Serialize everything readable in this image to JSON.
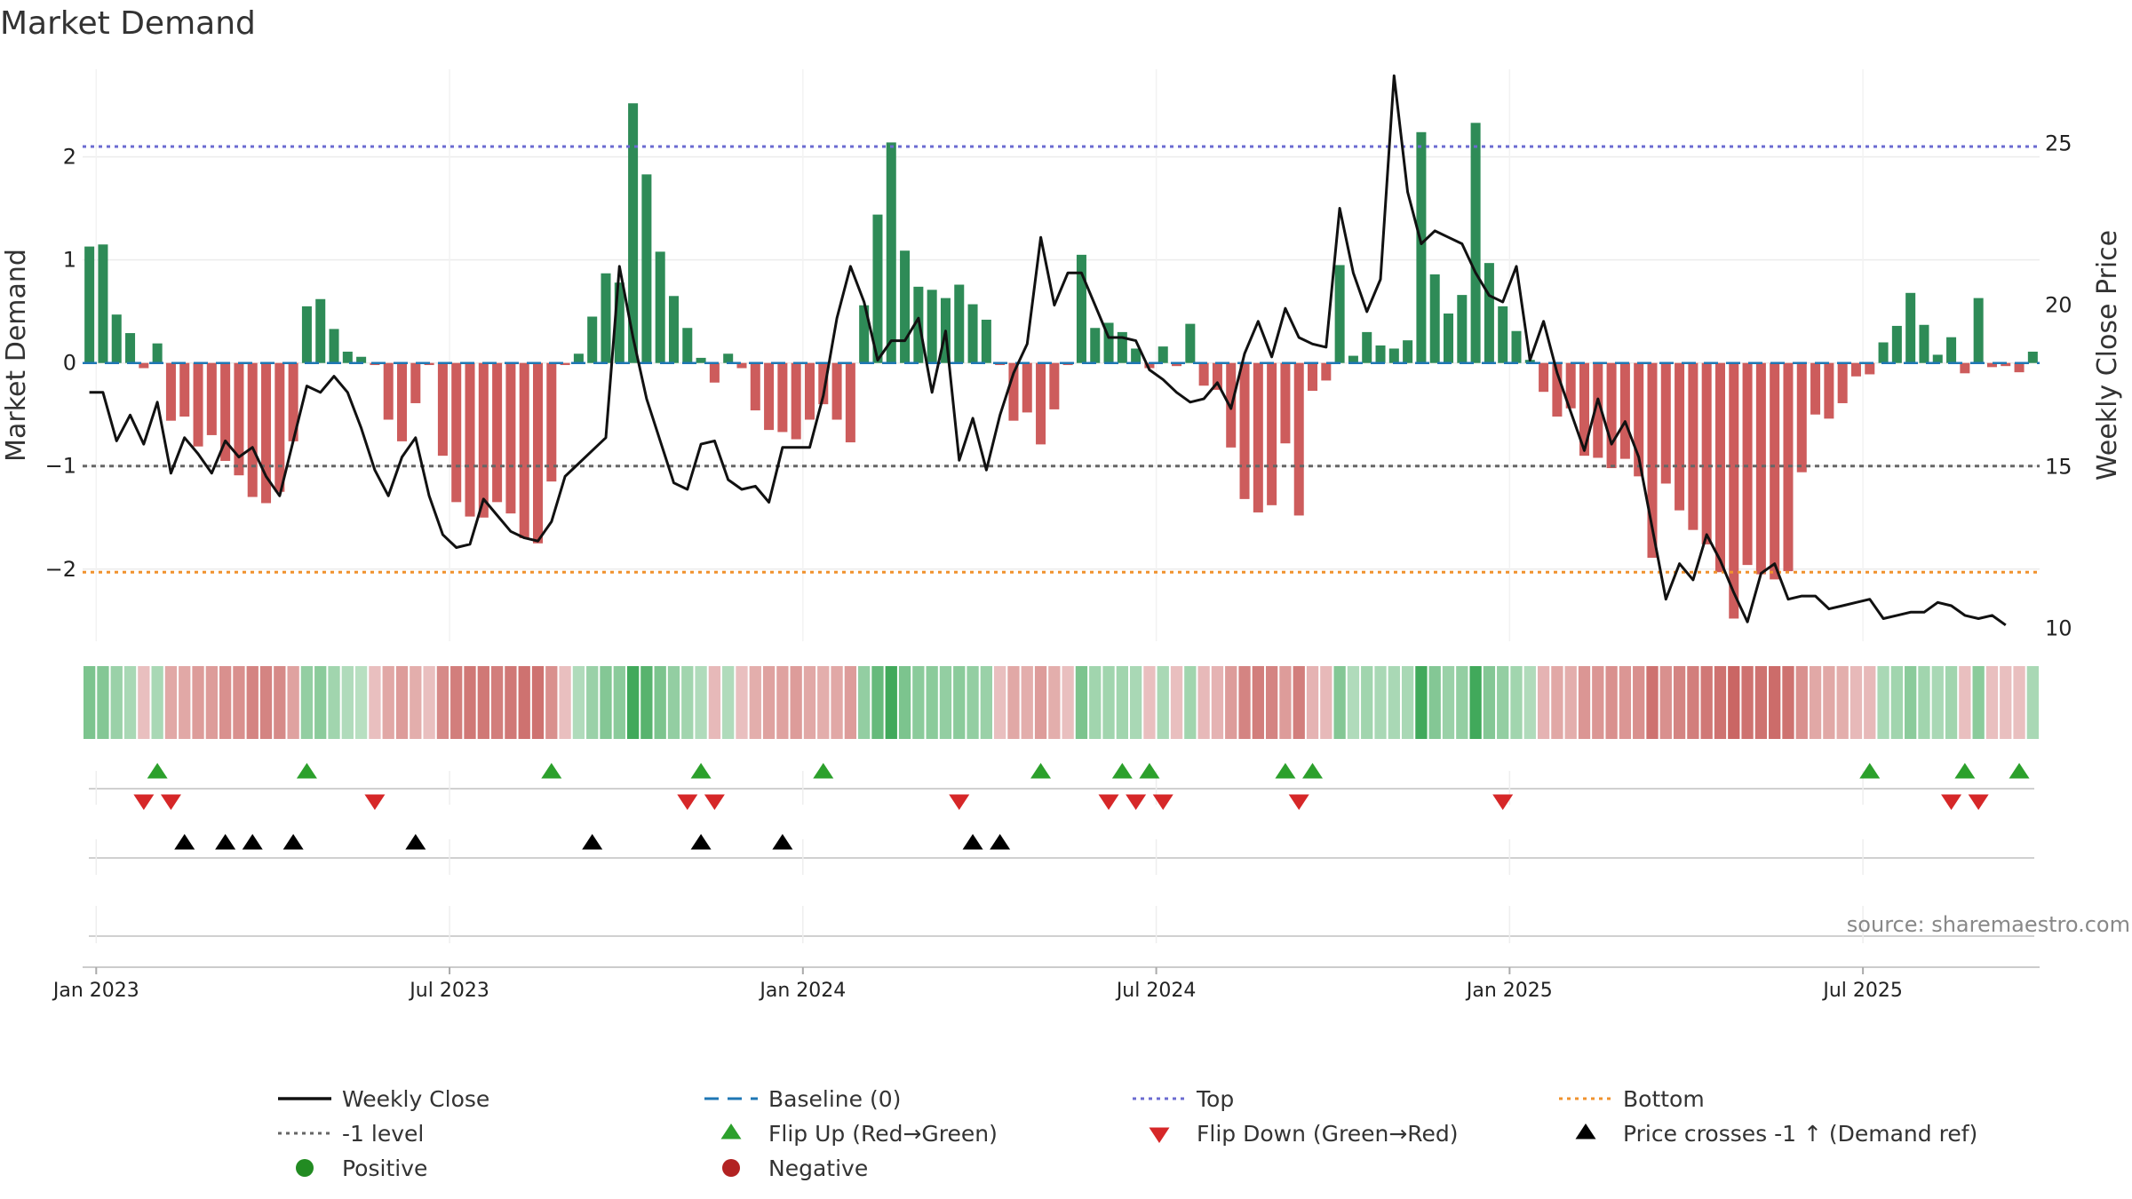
{
  "chart_data": {
    "type": "bar",
    "title": "Market Demand",
    "ylabel": "Market Demand",
    "y2label": "Weekly Close Price",
    "ylim": [
      -2.7,
      2.85
    ],
    "y2lim": [
      9.6,
      27.3
    ],
    "yticks": [
      "2",
      "1",
      "0",
      "−1",
      "−2"
    ],
    "yticks_values": [
      2,
      1,
      0,
      -1,
      -2
    ],
    "y2ticks": [
      "25",
      "20",
      "15",
      "10"
    ],
    "y2ticks_values": [
      25,
      20,
      15,
      10
    ],
    "xticks": [
      "Jan 2023",
      "Jul 2023",
      "Jan 2024",
      "Jul 2024",
      "Jan 2025",
      "Jul 2025"
    ],
    "xticks_week_index": [
      1,
      27,
      53,
      79,
      105,
      131
    ],
    "levels": {
      "top": 2.1,
      "bottom": -2.03,
      "minus_one": -1,
      "baseline": 0
    },
    "demand": [
      1.13,
      1.15,
      0.47,
      0.29,
      -0.05,
      0.19,
      -0.56,
      -0.52,
      -0.81,
      -0.7,
      -0.95,
      -1.09,
      -1.3,
      -1.36,
      -1.25,
      -0.76,
      0.55,
      0.62,
      0.33,
      0.11,
      0.06,
      -0.02,
      -0.55,
      -0.76,
      -0.39,
      -0.02,
      -0.9,
      -1.35,
      -1.49,
      -1.5,
      -1.35,
      -1.46,
      -1.7,
      -1.75,
      -1.15,
      -0.02,
      0.09,
      0.45,
      0.87,
      0.78,
      2.52,
      1.83,
      1.08,
      0.65,
      0.34,
      0.05,
      -0.19,
      0.09,
      -0.05,
      -0.46,
      -0.65,
      -0.67,
      -0.74,
      -0.55,
      -0.4,
      -0.55,
      -0.77,
      0.56,
      1.44,
      2.14,
      1.09,
      0.74,
      0.71,
      0.63,
      0.76,
      0.57,
      0.42,
      -0.02,
      -0.56,
      -0.48,
      -0.79,
      -0.45,
      -0.02,
      1.05,
      0.34,
      0.39,
      0.3,
      0.14,
      -0.05,
      0.16,
      -0.03,
      0.38,
      -0.22,
      -0.26,
      -0.82,
      -1.32,
      -1.45,
      -1.38,
      -0.78,
      -1.48,
      -0.27,
      -0.17,
      0.95,
      0.07,
      0.3,
      0.17,
      0.14,
      0.22,
      2.24,
      0.86,
      0.48,
      0.66,
      2.33,
      0.97,
      0.55,
      0.31,
      0.03,
      -0.28,
      -0.52,
      -0.44,
      -0.9,
      -0.92,
      -1.02,
      -0.93,
      -1.1,
      -1.89,
      -1.17,
      -1.43,
      -1.62,
      -1.76,
      -2.03,
      -2.48,
      -1.96,
      -2.05,
      -2.1,
      -2.02,
      -1.06,
      -0.5,
      -0.54,
      -0.39,
      -0.13,
      -0.11,
      0.2,
      0.36,
      0.68,
      0.37,
      0.08,
      0.25,
      -0.1,
      0.63,
      -0.04,
      -0.03,
      -0.09,
      0.11
    ],
    "price": [
      17.3,
      17.3,
      15.8,
      16.6,
      15.7,
      17.0,
      14.8,
      15.9,
      15.4,
      14.8,
      15.8,
      15.3,
      15.6,
      14.7,
      14.1,
      15.8,
      17.5,
      17.3,
      17.8,
      17.3,
      16.2,
      14.9,
      14.1,
      15.3,
      15.9,
      14.1,
      12.9,
      12.5,
      12.6,
      14.0,
      13.5,
      13.0,
      12.8,
      12.7,
      13.3,
      14.7,
      15.1,
      15.5,
      15.9,
      21.2,
      19.0,
      17.1,
      15.8,
      14.5,
      14.3,
      15.7,
      15.8,
      14.6,
      14.3,
      14.4,
      13.9,
      15.6,
      15.6,
      15.6,
      17.2,
      19.6,
      21.2,
      20.1,
      18.3,
      18.9,
      18.9,
      19.6,
      17.3,
      19.2,
      15.2,
      16.5,
      14.9,
      16.6,
      17.9,
      18.8,
      22.1,
      20.0,
      21.0,
      21.0,
      20.0,
      19.0,
      19.0,
      18.9,
      18.0,
      17.7,
      17.3,
      17.0,
      17.1,
      17.6,
      16.8,
      18.5,
      19.5,
      18.4,
      19.9,
      19.0,
      18.8,
      18.7,
      23.0,
      21.0,
      19.8,
      20.8,
      27.1,
      23.5,
      21.9,
      22.3,
      22.1,
      21.9,
      21.0,
      20.3,
      20.1,
      21.2,
      18.3,
      19.5,
      17.9,
      16.7,
      15.5,
      17.1,
      15.7,
      16.4,
      15.3,
      13.1,
      10.9,
      12.0,
      11.5,
      12.9,
      12.1,
      11.1,
      10.2,
      11.7,
      12.0,
      10.9,
      11.0,
      11.0,
      10.6,
      10.7,
      10.8,
      10.9,
      10.3,
      10.4,
      10.5,
      10.5,
      10.8,
      10.7,
      10.4,
      10.3,
      10.4,
      10.1
    ],
    "heat_intensity": [
      0.55,
      0.5,
      0.35,
      0.25,
      -0.2,
      0.25,
      -0.4,
      -0.4,
      -0.5,
      -0.5,
      -0.6,
      -0.6,
      -0.7,
      -0.7,
      -0.65,
      -0.45,
      0.4,
      0.45,
      0.3,
      0.2,
      0.15,
      -0.2,
      -0.4,
      -0.5,
      -0.35,
      -0.2,
      -0.65,
      -0.75,
      -0.8,
      -0.8,
      -0.75,
      -0.8,
      -0.85,
      -0.85,
      -0.6,
      -0.2,
      0.2,
      0.35,
      0.5,
      0.45,
      0.95,
      0.8,
      0.55,
      0.4,
      0.3,
      0.2,
      -0.25,
      0.2,
      -0.2,
      -0.35,
      -0.45,
      -0.45,
      -0.5,
      -0.4,
      -0.35,
      -0.4,
      -0.5,
      0.4,
      0.7,
      0.95,
      0.55,
      0.45,
      0.45,
      0.4,
      0.45,
      0.4,
      0.35,
      -0.2,
      -0.4,
      -0.35,
      -0.5,
      -0.35,
      -0.2,
      0.55,
      0.3,
      0.3,
      0.3,
      0.25,
      -0.2,
      0.25,
      -0.2,
      0.3,
      -0.25,
      -0.3,
      -0.5,
      -0.7,
      -0.75,
      -0.7,
      -0.5,
      -0.75,
      -0.3,
      -0.25,
      0.5,
      0.2,
      0.3,
      0.25,
      0.25,
      0.25,
      0.95,
      0.5,
      0.35,
      0.4,
      0.95,
      0.5,
      0.4,
      0.3,
      0.2,
      -0.3,
      -0.4,
      -0.35,
      -0.55,
      -0.55,
      -0.6,
      -0.55,
      -0.6,
      -0.85,
      -0.6,
      -0.7,
      -0.75,
      -0.8,
      -0.85,
      -0.95,
      -0.85,
      -0.85,
      -0.9,
      -0.85,
      -0.6,
      -0.4,
      -0.4,
      -0.35,
      -0.25,
      -0.25,
      0.25,
      0.3,
      0.45,
      0.3,
      0.25,
      0.3,
      -0.2,
      0.45,
      -0.2,
      -0.2,
      -0.2,
      0.25
    ],
    "flip_up_weeks": [
      5,
      16,
      34,
      45,
      54,
      70,
      76,
      78,
      88,
      90,
      131,
      138,
      142
    ],
    "flip_down_weeks": [
      4,
      6,
      21,
      44,
      46,
      64,
      75,
      77,
      79,
      89,
      104,
      137,
      139
    ],
    "price_cross_weeks": [
      7,
      10,
      12,
      15,
      24,
      37,
      45,
      51,
      65,
      67
    ],
    "legend": [
      {
        "label": "Weekly Close",
        "marker": "solid-line",
        "color": "#111111"
      },
      {
        "label": "Baseline (0)",
        "marker": "dashed-line",
        "color": "#1f77b4"
      },
      {
        "label": "Top",
        "marker": "dotted-line",
        "color": "#6b6bd1"
      },
      {
        "label": "Bottom",
        "marker": "dotted-line",
        "color": "#f0922e"
      },
      {
        "label": "-1 level",
        "marker": "dotted-line",
        "color": "#666666"
      },
      {
        "label": "Flip Up (Red→Green)",
        "marker": "triangle-up",
        "color": "#2ca02c"
      },
      {
        "label": "Flip Down (Green→Red)",
        "marker": "triangle-down",
        "color": "#d62728"
      },
      {
        "label": "Price crosses -1 ↑ (Demand ref)",
        "marker": "triangle-up",
        "color": "#000000"
      },
      {
        "label": "Positive",
        "marker": "circle",
        "color": "#228b22"
      },
      {
        "label": "Negative",
        "marker": "circle",
        "color": "#b22222"
      }
    ],
    "source": "source: sharemaestro.com"
  },
  "colors": {
    "positive_bar": "#2e8b57",
    "negative_bar": "#cd5c5c",
    "heat_green": "#3aa655",
    "heat_red": "#c8605e"
  }
}
